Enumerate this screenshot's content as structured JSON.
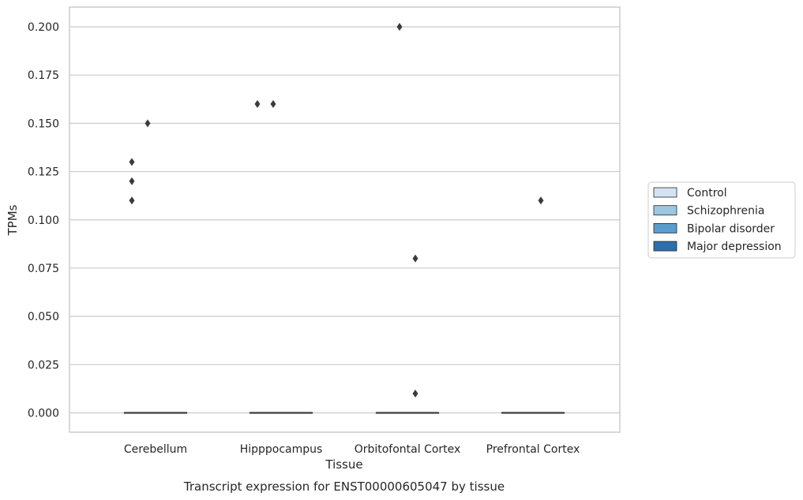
{
  "chart_data": {
    "type": "box",
    "xlabel": "Tissue",
    "ylabel": "TPMs",
    "caption": "Transcript expression for ENST00000605047 by tissue",
    "categories": [
      "Cerebellum",
      "Hipppocampus",
      "Orbitofontal Cortex",
      "Prefrontal Cortex"
    ],
    "ylim": [
      -0.01,
      0.21
    ],
    "yticks": [
      "0.000",
      "0.025",
      "0.050",
      "0.075",
      "0.100",
      "0.125",
      "0.150",
      "0.175",
      "0.200"
    ],
    "grid": true,
    "legend_position": "right",
    "series": [
      {
        "name": "Control",
        "color": "#d3e3f3"
      },
      {
        "name": "Schizophrenia",
        "color": "#9cc7e0"
      },
      {
        "name": "Bipolar disorder",
        "color": "#5b9dcc"
      },
      {
        "name": "Major depression",
        "color": "#2a6fae"
      }
    ],
    "boxes": [
      {
        "category": "Cerebellum",
        "series": "Control",
        "median": 0,
        "q1": 0,
        "q3": 0,
        "whisker_low": 0,
        "whisker_high": 0,
        "outliers": [
          0.11,
          0.12,
          0.13
        ]
      },
      {
        "category": "Cerebellum",
        "series": "Schizophrenia",
        "median": 0,
        "q1": 0,
        "q3": 0,
        "whisker_low": 0,
        "whisker_high": 0,
        "outliers": [
          0.15
        ]
      },
      {
        "category": "Cerebellum",
        "series": "Bipolar disorder",
        "median": 0,
        "q1": 0,
        "q3": 0,
        "whisker_low": 0,
        "whisker_high": 0,
        "outliers": []
      },
      {
        "category": "Cerebellum",
        "series": "Major depression",
        "median": 0,
        "q1": 0,
        "q3": 0,
        "whisker_low": 0,
        "whisker_high": 0,
        "outliers": []
      },
      {
        "category": "Hipppocampus",
        "series": "Control",
        "median": 0,
        "q1": 0,
        "q3": 0,
        "whisker_low": 0,
        "whisker_high": 0,
        "outliers": [
          0.16
        ]
      },
      {
        "category": "Hipppocampus",
        "series": "Schizophrenia",
        "median": 0,
        "q1": 0,
        "q3": 0,
        "whisker_low": 0,
        "whisker_high": 0,
        "outliers": [
          0.16
        ]
      },
      {
        "category": "Hipppocampus",
        "series": "Bipolar disorder",
        "median": 0,
        "q1": 0,
        "q3": 0,
        "whisker_low": 0,
        "whisker_high": 0,
        "outliers": []
      },
      {
        "category": "Hipppocampus",
        "series": "Major depression",
        "median": 0,
        "q1": 0,
        "q3": 0,
        "whisker_low": 0,
        "whisker_high": 0,
        "outliers": []
      },
      {
        "category": "Orbitofontal Cortex",
        "series": "Control",
        "median": 0,
        "q1": 0,
        "q3": 0,
        "whisker_low": 0,
        "whisker_high": 0,
        "outliers": []
      },
      {
        "category": "Orbitofontal Cortex",
        "series": "Schizophrenia",
        "median": 0,
        "q1": 0,
        "q3": 0,
        "whisker_low": 0,
        "whisker_high": 0,
        "outliers": [
          0.2
        ]
      },
      {
        "category": "Orbitofontal Cortex",
        "series": "Bipolar disorder",
        "median": 0,
        "q1": 0,
        "q3": 0,
        "whisker_low": 0,
        "whisker_high": 0,
        "outliers": [
          0.01,
          0.08
        ]
      },
      {
        "category": "Orbitofontal Cortex",
        "series": "Major depression",
        "median": 0,
        "q1": 0,
        "q3": 0,
        "whisker_low": 0,
        "whisker_high": 0,
        "outliers": []
      },
      {
        "category": "Prefrontal Cortex",
        "series": "Control",
        "median": 0,
        "q1": 0,
        "q3": 0,
        "whisker_low": 0,
        "whisker_high": 0,
        "outliers": []
      },
      {
        "category": "Prefrontal Cortex",
        "series": "Schizophrenia",
        "median": 0,
        "q1": 0,
        "q3": 0,
        "whisker_low": 0,
        "whisker_high": 0,
        "outliers": []
      },
      {
        "category": "Prefrontal Cortex",
        "series": "Bipolar disorder",
        "median": 0,
        "q1": 0,
        "q3": 0,
        "whisker_low": 0,
        "whisker_high": 0,
        "outliers": [
          0.11
        ]
      },
      {
        "category": "Prefrontal Cortex",
        "series": "Major depression",
        "median": 0,
        "q1": 0,
        "q3": 0,
        "whisker_low": 0,
        "whisker_high": 0,
        "outliers": []
      }
    ],
    "colors": {
      "grid": "#cccccc",
      "frame": "#cccccc",
      "marker": "#3b3b3b",
      "text": "#262626"
    }
  }
}
